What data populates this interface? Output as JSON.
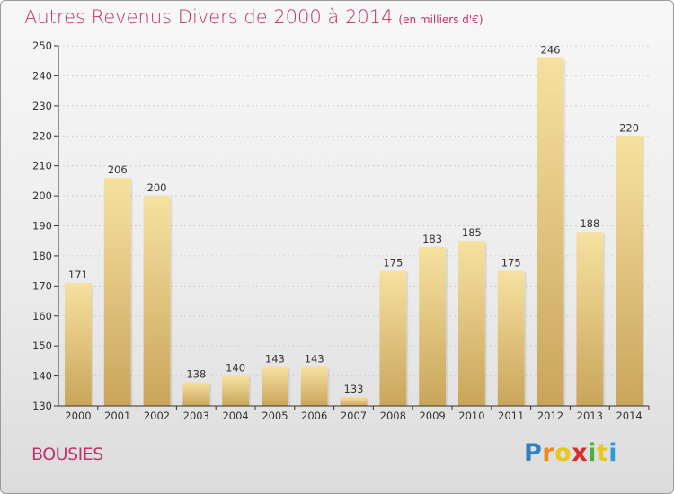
{
  "header": {
    "title": "Autres Revenus Divers de 2000 à 2014",
    "unit": "(en milliers d'€)"
  },
  "footer": {
    "commune": "BOUSIES",
    "logo": {
      "letters": [
        "P",
        "r",
        "o",
        "x",
        "i",
        "t",
        "i"
      ],
      "colors": [
        "#2f7fc1",
        "#f08a1c",
        "#e8c81a",
        "#d92b2b",
        "#4caf3a",
        "#e8c81a",
        "#2f9bd6"
      ]
    }
  },
  "colors": {
    "title": "#c0336e",
    "bar_top": "#f6e1a0",
    "bar_bottom": "#c9a55a"
  },
  "chart_data": {
    "type": "bar",
    "title": "Autres Revenus Divers de 2000 à 2014",
    "subtitle": "(en milliers d'€)",
    "xlabel": "",
    "ylabel": "",
    "categories": [
      "2000",
      "2001",
      "2002",
      "2003",
      "2004",
      "2005",
      "2006",
      "2007",
      "2008",
      "2009",
      "2010",
      "2011",
      "2012",
      "2013",
      "2014"
    ],
    "values": [
      171,
      206,
      200,
      138,
      140,
      143,
      143,
      133,
      175,
      183,
      185,
      175,
      246,
      188,
      220
    ],
    "ylim": [
      130,
      250
    ],
    "yticks": [
      130,
      140,
      150,
      160,
      170,
      180,
      190,
      200,
      210,
      220,
      230,
      240,
      250
    ],
    "grid": true,
    "legend": "none"
  }
}
